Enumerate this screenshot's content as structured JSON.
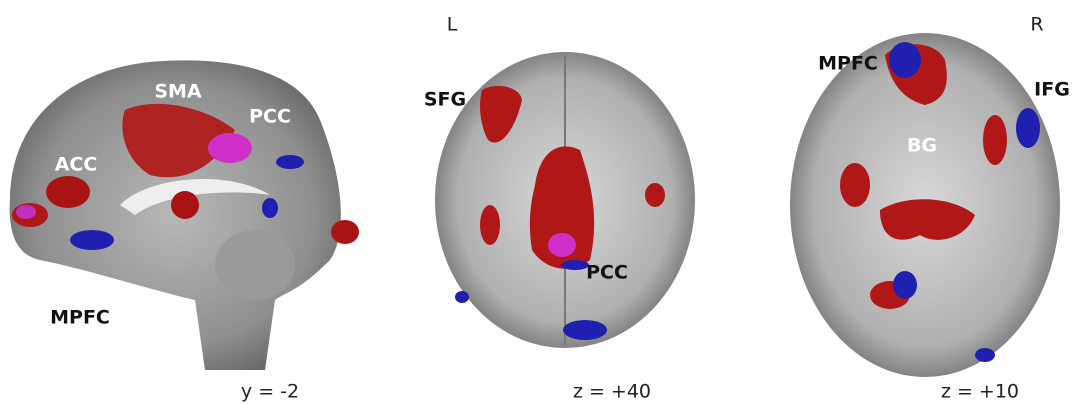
{
  "orientation": {
    "left": "L",
    "right": "R"
  },
  "panels": [
    {
      "caption": "y = -2",
      "labels": [
        "SMA",
        "PCC",
        "ACC",
        "MPFC"
      ]
    },
    {
      "caption": "z = +40",
      "labels": [
        "SFG",
        "PCC"
      ]
    },
    {
      "caption": "z = +10",
      "labels": [
        "MPFC",
        "IFG",
        "BG"
      ]
    }
  ]
}
